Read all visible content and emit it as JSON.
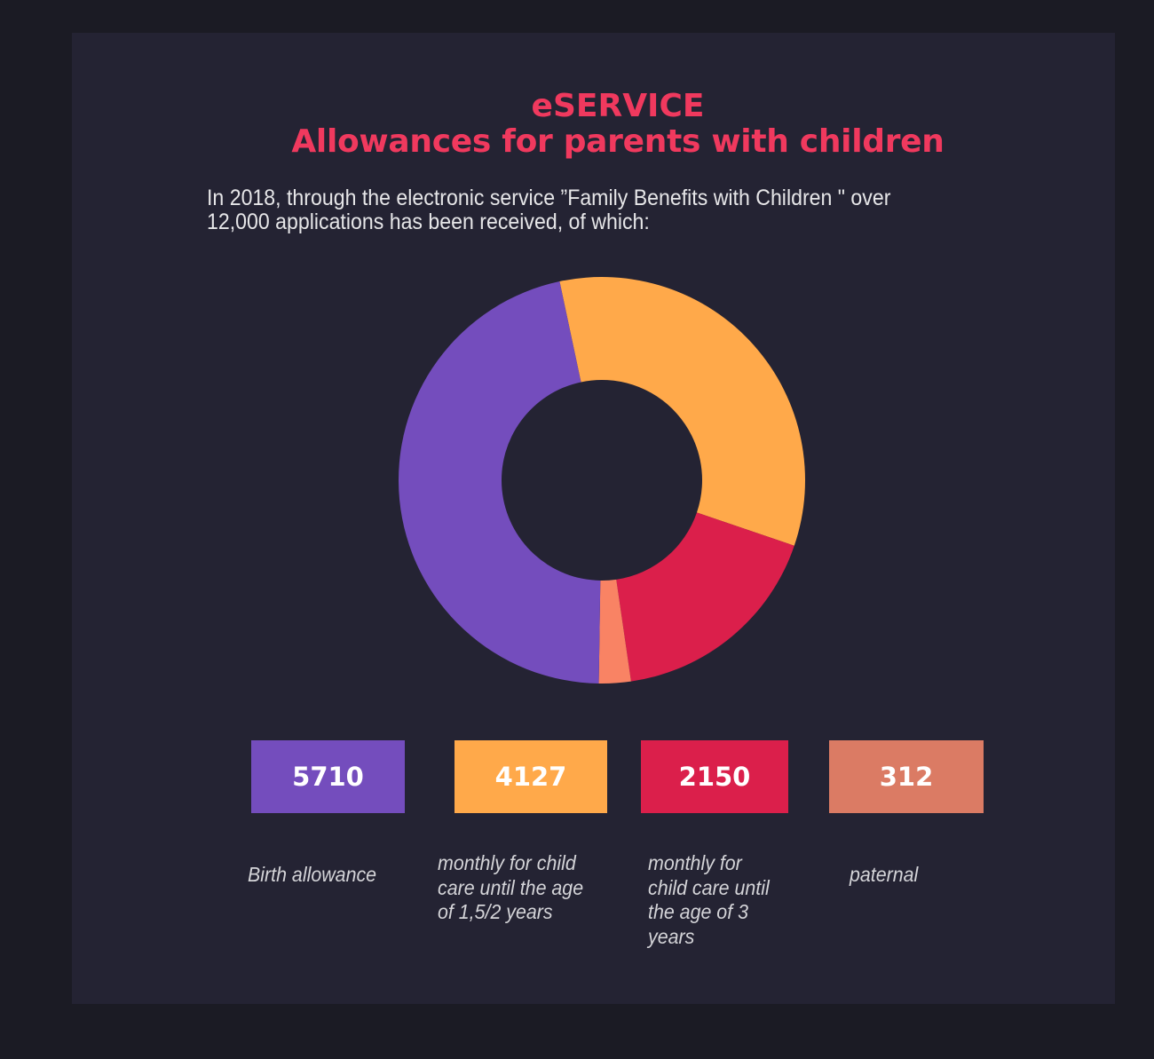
{
  "header": {
    "title_line1": "eSERVICE",
    "title_line2": "Allowances for parents with children",
    "subtitle_line1": "In 2018, through the electronic service ”Family Benefits with Children \" over",
    "subtitle_line2": "12,000 applications has been received, of which:"
  },
  "colors": {
    "background": "#1b1b24",
    "card": "#242333",
    "title": "#f0395e",
    "purple": "#744dbd",
    "orange": "#ffa94a",
    "red": "#db1f4b",
    "salmon_slice": "#f98364",
    "salmon_box": "#db7b64"
  },
  "chart_data": {
    "type": "pie",
    "variant": "donut",
    "title": "eSERVICE Allowances for parents with children",
    "subtitle": "In 2018, through the electronic service ”Family Benefits with Children \" over 12,000 applications has been received, of which:",
    "categories": [
      "Birth allowance",
      "monthly for child care until the age of 1,5/2 years",
      "monthly for child care until the age of 3 years",
      "paternal"
    ],
    "values": [
      5710,
      4127,
      2150,
      312
    ],
    "value_labels": [
      "5710",
      "4127",
      "2150",
      "312"
    ],
    "slice_colors": [
      "#744dbd",
      "#ffa94a",
      "#db1f4b",
      "#f98364"
    ],
    "box_colors": [
      "#744dbd",
      "#ffa94a",
      "#db1f4b",
      "#db7b64"
    ],
    "label_lines": [
      [
        "Birth allowance"
      ],
      [
        "monthly for child",
        "care until the age",
        "of 1,5/2 years"
      ],
      [
        "monthly for",
        "child care until",
        "the age of 3",
        "years"
      ],
      [
        "paternal"
      ]
    ],
    "draw_order": [
      1,
      2,
      3,
      0
    ],
    "start_angle_deg": -12,
    "legend": "bottom"
  }
}
